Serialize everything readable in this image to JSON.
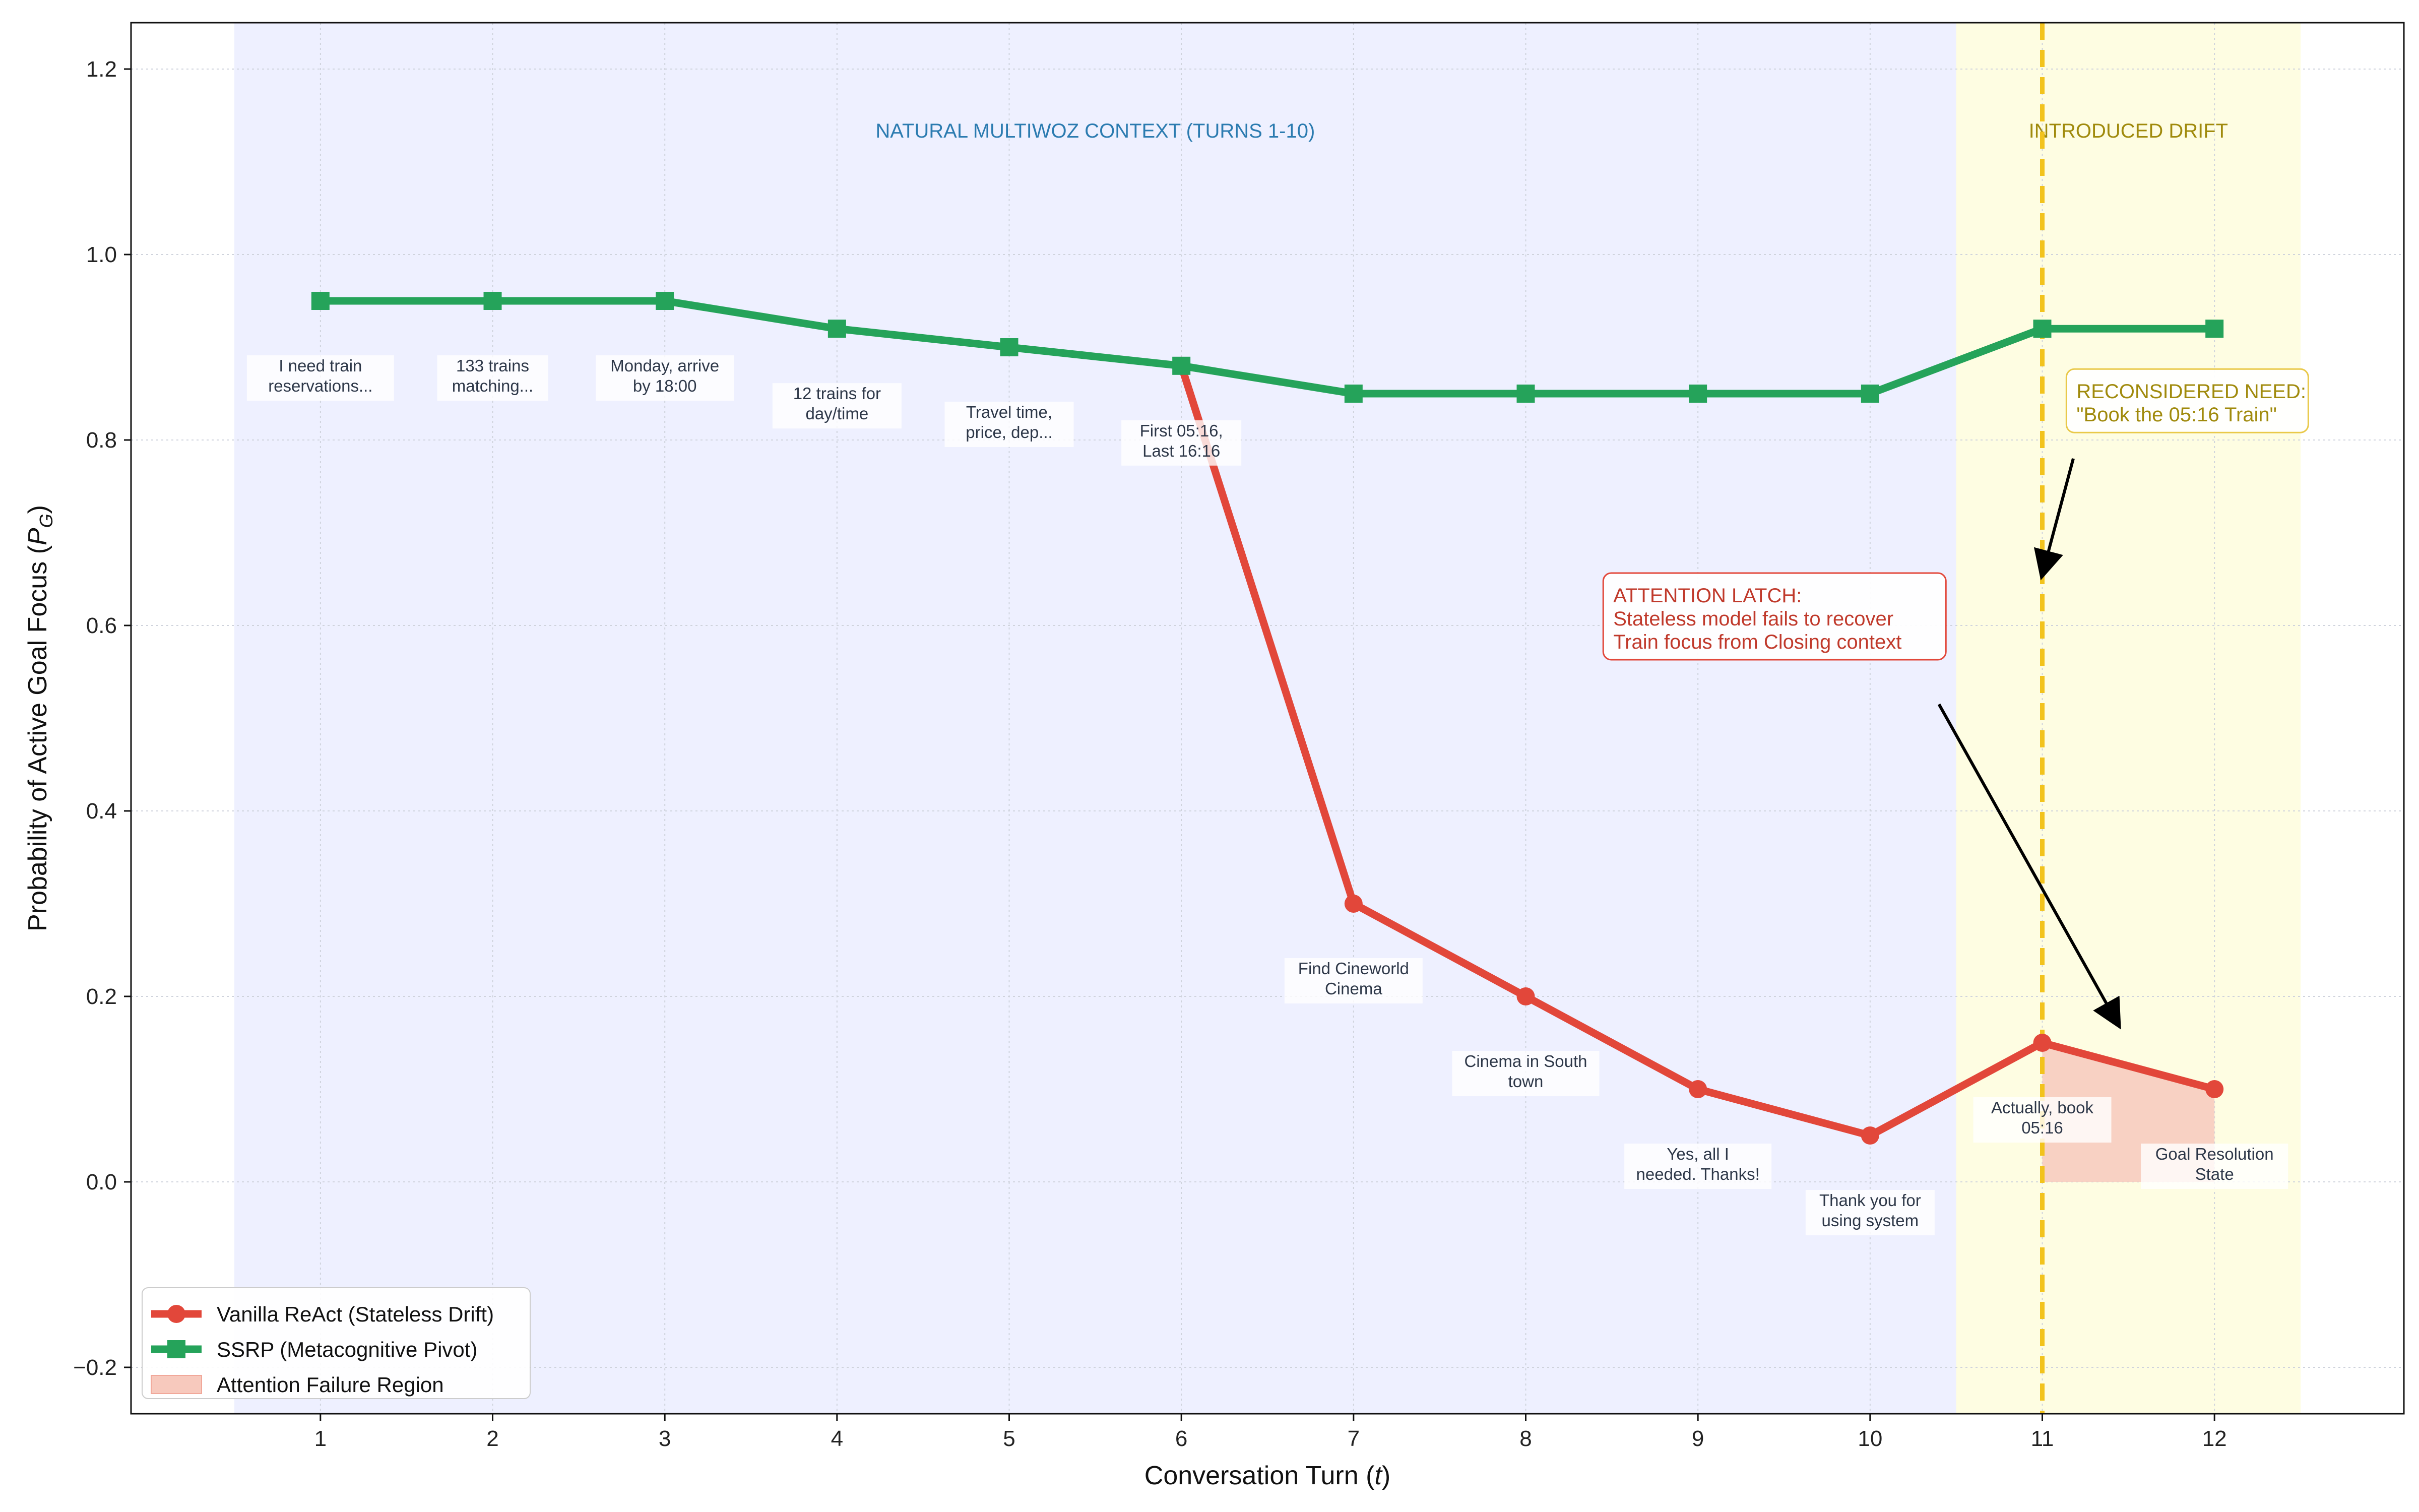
{
  "chart_data": {
    "type": "line",
    "title": "",
    "xlabel": "Conversation Turn",
    "xlabel_var": "t",
    "ylabel": "Probability of Active Goal Focus",
    "ylabel_var": "P",
    "ylabel_sub": "G",
    "xlim": [
      -0.1,
      13.1
    ],
    "ylim": [
      -0.25,
      1.25
    ],
    "x_ticks": [
      1,
      2,
      3,
      4,
      5,
      6,
      7,
      8,
      9,
      10,
      11,
      12
    ],
    "y_ticks": [
      -0.2,
      0.0,
      0.2,
      0.4,
      0.6,
      0.8,
      1.0,
      1.2
    ],
    "grid": true,
    "legend_position": "bottom-left",
    "x": [
      1,
      2,
      3,
      4,
      5,
      6,
      7,
      8,
      9,
      10,
      11,
      12
    ],
    "series": [
      {
        "name": "Vanilla ReAct (Stateless Drift)",
        "color": "#e2473a",
        "marker": "circle",
        "x": [
          6,
          7,
          8,
          9,
          10,
          11,
          12
        ],
        "values": [
          0.88,
          0.3,
          0.2,
          0.1,
          0.05,
          0.15,
          0.1
        ]
      },
      {
        "name": "SSRP (Metacognitive Pivot)",
        "color": "#25a35a",
        "marker": "square",
        "x": [
          1,
          2,
          3,
          4,
          5,
          6,
          7,
          8,
          9,
          10,
          11,
          12
        ],
        "values": [
          0.95,
          0.95,
          0.95,
          0.92,
          0.9,
          0.88,
          0.85,
          0.85,
          0.85,
          0.85,
          0.92,
          0.92
        ]
      }
    ],
    "fill_region": {
      "name": "Attention Failure Region",
      "color": "#f7c9bd",
      "x": [
        11,
        12
      ],
      "upper": [
        0.15,
        0.1
      ],
      "lower": [
        0.0,
        0.0
      ]
    },
    "regions": [
      {
        "label": "NATURAL MULTIWOZ CONTEXT (TURNS 1-10)",
        "x_range": [
          0.5,
          10.5
        ],
        "color": "#eef0ff",
        "text_color": "#2b7bb0",
        "label_x": 5.5,
        "label_y": 1.126
      },
      {
        "label": "INTRODUCED DRIFT",
        "x_range": [
          10.5,
          12.5
        ],
        "color": "#fefde2",
        "text_color": "#a08a0c",
        "label_x": 11.5,
        "label_y": 1.126
      }
    ],
    "vline": {
      "x": 11,
      "color": "#f2c31d"
    },
    "point_labels": [
      {
        "x": 1,
        "y": 0.95,
        "lines": [
          "I need train",
          "reservations..."
        ],
        "pos": "below"
      },
      {
        "x": 2,
        "y": 0.95,
        "lines": [
          "133 trains",
          "matching..."
        ],
        "pos": "below"
      },
      {
        "x": 3,
        "y": 0.95,
        "lines": [
          "Monday, arrive",
          "by 18:00"
        ],
        "pos": "below"
      },
      {
        "x": 4,
        "y": 0.92,
        "lines": [
          "12 trains for",
          "day/time"
        ],
        "pos": "below"
      },
      {
        "x": 5,
        "y": 0.9,
        "lines": [
          "Travel time,",
          "price, dep..."
        ],
        "pos": "below"
      },
      {
        "x": 6,
        "y": 0.88,
        "lines": [
          "First 05:16,",
          "Last 16:16"
        ],
        "pos": "below"
      },
      {
        "x": 7,
        "y": 0.3,
        "lines": [
          "Find Cineworld",
          "Cinema"
        ],
        "pos": "below"
      },
      {
        "x": 8,
        "y": 0.2,
        "lines": [
          "Cinema in South",
          "town"
        ],
        "pos": "below"
      },
      {
        "x": 9,
        "y": 0.1,
        "lines": [
          "Yes, all I",
          "needed. Thanks!"
        ],
        "pos": "below"
      },
      {
        "x": 10,
        "y": 0.05,
        "lines": [
          "Thank you for",
          "using system"
        ],
        "pos": "below"
      },
      {
        "x": 11,
        "y": 0.15,
        "lines": [
          "Actually, book",
          "05:16"
        ],
        "pos": "below"
      },
      {
        "x": 12,
        "y": 0.1,
        "lines": [
          "Goal Resolution",
          "State"
        ],
        "pos": "below"
      }
    ],
    "annotations": [
      {
        "id": "attention-latch",
        "lines": [
          "ATTENTION LATCH:",
          "Stateless model fails to recover",
          "Train focus from Closing context"
        ],
        "text_color": "#c0392b",
        "border_color": "#e2473a",
        "box_x": 8.45,
        "box_y": 0.625,
        "arrow_from": [
          10.4,
          0.515
        ],
        "arrow_to": [
          11.44,
          0.17
        ]
      },
      {
        "id": "reconsidered-need",
        "lines": [
          "RECONSIDERED NEED:",
          "\"Book the 05:16 Train\""
        ],
        "text_color": "#a08a0c",
        "border_color": "#e9c94a",
        "box_x": 11.14,
        "box_y": 0.845,
        "arrow_from": [
          11.18,
          0.78
        ],
        "arrow_to": [
          11.0,
          0.655
        ]
      }
    ]
  }
}
